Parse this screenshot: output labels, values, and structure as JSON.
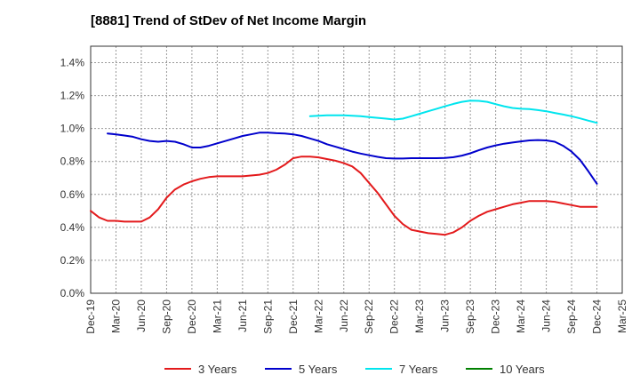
{
  "chart_data": {
    "type": "line",
    "title": "[8881]  Trend of StDev of Net Income Margin",
    "xlabel": "",
    "ylabel": "",
    "x_categories": [
      "Dec-19",
      "Mar-20",
      "Jun-20",
      "Sep-20",
      "Dec-20",
      "Mar-21",
      "Jun-21",
      "Sep-21",
      "Dec-21",
      "Mar-22",
      "Jun-22",
      "Sep-22",
      "Dec-22",
      "Mar-23",
      "Jun-23",
      "Sep-23",
      "Dec-23",
      "Mar-24",
      "Jun-24",
      "Sep-24",
      "Dec-24",
      "Mar-25"
    ],
    "yticks": [
      "0.0%",
      "0.2%",
      "0.4%",
      "0.6%",
      "0.8%",
      "1.0%",
      "1.2%",
      "1.4%"
    ],
    "ylim": [
      0,
      1.5
    ],
    "y_unit": "%",
    "grid": true,
    "legend_position": "bottom",
    "series": [
      {
        "name": "3 Years",
        "color": "#e31a1c",
        "x": [
          "Dec-19",
          "Jan-20",
          "Feb-20",
          "Mar-20",
          "Apr-20",
          "May-20",
          "Jun-20",
          "Jul-20",
          "Aug-20",
          "Sep-20",
          "Oct-20",
          "Nov-20",
          "Dec-20",
          "Jan-21",
          "Feb-21",
          "Mar-21",
          "Apr-21",
          "May-21",
          "Jun-21",
          "Jul-21",
          "Aug-21",
          "Sep-21",
          "Oct-21",
          "Nov-21",
          "Dec-21",
          "Jan-22",
          "Feb-22",
          "Mar-22",
          "Apr-22",
          "May-22",
          "Jun-22",
          "Jul-22",
          "Aug-22",
          "Sep-22",
          "Oct-22",
          "Nov-22",
          "Dec-22",
          "Jan-23",
          "Feb-23",
          "Mar-23",
          "Apr-23",
          "May-23",
          "Jun-23",
          "Jul-23",
          "Aug-23",
          "Sep-23",
          "Oct-23",
          "Nov-23",
          "Dec-23",
          "Jan-24",
          "Feb-24",
          "Mar-24",
          "Apr-24",
          "May-24",
          "Jun-24",
          "Jul-24",
          "Aug-24",
          "Sep-24",
          "Oct-24",
          "Nov-24",
          "Dec-24"
        ],
        "values": [
          0.5,
          0.46,
          0.44,
          0.44,
          0.435,
          0.435,
          0.435,
          0.46,
          0.51,
          0.58,
          0.63,
          0.66,
          0.68,
          0.695,
          0.705,
          0.71,
          0.71,
          0.71,
          0.71,
          0.715,
          0.72,
          0.73,
          0.75,
          0.78,
          0.82,
          0.83,
          0.83,
          0.825,
          0.815,
          0.805,
          0.79,
          0.77,
          0.73,
          0.67,
          0.61,
          0.54,
          0.47,
          0.42,
          0.385,
          0.375,
          0.365,
          0.36,
          0.355,
          0.37,
          0.4,
          0.44,
          0.47,
          0.495,
          0.51,
          0.525,
          0.54,
          0.55,
          0.56,
          0.56,
          0.56,
          0.555,
          0.545,
          0.535,
          0.525,
          0.525,
          0.525
        ]
      },
      {
        "name": "5 Years",
        "color": "#0000cc",
        "x": [
          "Dec-19",
          "Jan-20",
          "Feb-20",
          "Mar-20",
          "Apr-20",
          "May-20",
          "Jun-20",
          "Jul-20",
          "Aug-20",
          "Sep-20",
          "Oct-20",
          "Nov-20",
          "Dec-20",
          "Jan-21",
          "Feb-21",
          "Mar-21",
          "Apr-21",
          "May-21",
          "Jun-21",
          "Jul-21",
          "Aug-21",
          "Sep-21",
          "Oct-21",
          "Nov-21",
          "Dec-21",
          "Jan-22",
          "Feb-22",
          "Mar-22",
          "Apr-22",
          "May-22",
          "Jun-22",
          "Jul-22",
          "Aug-22",
          "Sep-22",
          "Oct-22",
          "Nov-22",
          "Dec-22",
          "Jan-23",
          "Feb-23",
          "Mar-23",
          "Apr-23",
          "May-23",
          "Jun-23",
          "Jul-23",
          "Aug-23",
          "Sep-23",
          "Oct-23",
          "Nov-23",
          "Dec-23",
          "Jan-24",
          "Feb-24",
          "Mar-24",
          "Apr-24",
          "May-24",
          "Jun-24",
          "Jul-24",
          "Aug-24",
          "Sep-24",
          "Oct-24",
          "Nov-24",
          "Dec-24"
        ],
        "values": [
          null,
          null,
          0.97,
          0.965,
          0.958,
          0.95,
          0.935,
          0.925,
          0.92,
          0.925,
          0.92,
          0.905,
          0.885,
          0.885,
          0.895,
          0.91,
          0.925,
          0.94,
          0.955,
          0.965,
          0.975,
          0.975,
          0.972,
          0.97,
          0.965,
          0.955,
          0.94,
          0.925,
          0.905,
          0.89,
          0.875,
          0.86,
          0.848,
          0.838,
          0.828,
          0.82,
          0.818,
          0.818,
          0.82,
          0.82,
          0.82,
          0.82,
          0.822,
          0.826,
          0.836,
          0.85,
          0.868,
          0.885,
          0.898,
          0.908,
          0.915,
          0.922,
          0.928,
          0.93,
          0.928,
          0.92,
          0.895,
          0.86,
          0.81,
          0.74,
          0.665
        ]
      },
      {
        "name": "7 Years",
        "color": "#00e5ee",
        "x": [
          "Feb-22",
          "Mar-22",
          "Apr-22",
          "May-22",
          "Jun-22",
          "Jul-22",
          "Aug-22",
          "Sep-22",
          "Oct-22",
          "Nov-22",
          "Dec-22",
          "Jan-23",
          "Feb-23",
          "Mar-23",
          "Apr-23",
          "May-23",
          "Jun-23",
          "Jul-23",
          "Aug-23",
          "Sep-23",
          "Oct-23",
          "Nov-23",
          "Dec-23",
          "Jan-24",
          "Feb-24",
          "Mar-24",
          "Apr-24",
          "May-24",
          "Jun-24",
          "Jul-24",
          "Aug-24",
          "Sep-24",
          "Oct-24",
          "Nov-24",
          "Dec-24"
        ],
        "values": [
          1.075,
          1.078,
          1.08,
          1.08,
          1.08,
          1.078,
          1.075,
          1.07,
          1.065,
          1.06,
          1.055,
          1.06,
          1.075,
          1.09,
          1.105,
          1.12,
          1.135,
          1.15,
          1.162,
          1.17,
          1.168,
          1.162,
          1.148,
          1.135,
          1.125,
          1.12,
          1.118,
          1.112,
          1.105,
          1.095,
          1.085,
          1.075,
          1.062,
          1.048,
          1.035
        ]
      },
      {
        "name": "10 Years",
        "color": "#008000",
        "x": [],
        "values": []
      }
    ]
  }
}
